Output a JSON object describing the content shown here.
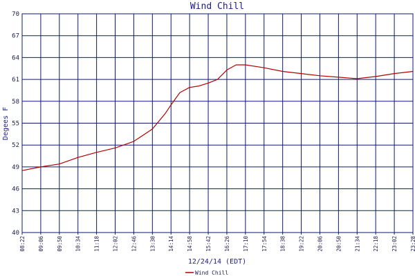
{
  "chart_data": {
    "type": "line",
    "title": "Wind Chill",
    "xlabel": "12/24/14 (EDT)",
    "ylabel": "Degees F",
    "ylim": [
      40,
      70
    ],
    "yticks": [
      "40",
      "43",
      "46",
      "49",
      "52",
      "55",
      "58",
      "61",
      "64",
      "67",
      "70"
    ],
    "xticks": [
      "08:22",
      "09:06",
      "09:50",
      "10:34",
      "11:18",
      "12:02",
      "12:46",
      "13:30",
      "14:14",
      "14:58",
      "15:42",
      "16:26",
      "17:10",
      "17:54",
      "18:38",
      "19:22",
      "20:06",
      "20:50",
      "21:34",
      "22:18",
      "23:02",
      "23:28"
    ],
    "grid": true,
    "legend": "bottom-left",
    "colors": {
      "grid": "#0a1a6e",
      "line": "#b00000",
      "text": "#1a1a8a"
    },
    "series": [
      {
        "name": "Wind Chill",
        "x": [
          "08:22",
          "09:06",
          "09:50",
          "10:34",
          "11:18",
          "12:02",
          "12:46",
          "13:30",
          "14:00",
          "14:14",
          "14:35",
          "14:58",
          "15:20",
          "15:42",
          "16:04",
          "16:26",
          "16:48",
          "17:10",
          "17:54",
          "18:38",
          "19:22",
          "20:06",
          "20:50",
          "21:34",
          "22:18",
          "23:02",
          "23:28"
        ],
        "values": [
          48.5,
          49.0,
          49.4,
          50.3,
          51.0,
          51.6,
          52.5,
          54.2,
          56.3,
          57.5,
          59.2,
          59.9,
          60.1,
          60.5,
          61.0,
          62.3,
          63.0,
          63.0,
          62.6,
          62.1,
          61.8,
          61.5,
          61.3,
          61.1,
          61.4,
          61.8,
          62.1
        ]
      }
    ]
  }
}
